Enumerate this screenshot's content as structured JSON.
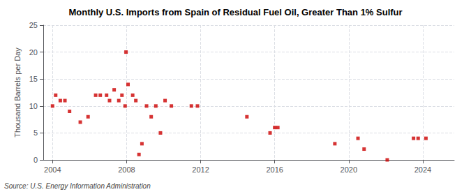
{
  "chart_data": {
    "type": "scatter",
    "title": "Monthly U.S. Imports from Spain of Residual Fuel Oil, Greater Than 1% Sulfur",
    "ylabel": "Thousand Barrels per Day",
    "annotations": [
      "Source: U.S. Energy Information Administration"
    ],
    "color": "#cc0000",
    "marker": "square",
    "grid": true,
    "xlim": [
      2003.5,
      2025.7
    ],
    "xticks": [
      2004,
      2008,
      2012,
      2016,
      2020,
      2024
    ],
    "ylim": [
      0,
      25
    ],
    "yticks": [
      0,
      5,
      10,
      15,
      20,
      25
    ],
    "x": [
      2004.0,
      2004.17,
      2004.42,
      2004.67,
      2004.92,
      2005.5,
      2005.92,
      2006.33,
      2006.58,
      2006.92,
      2007.08,
      2007.33,
      2007.58,
      2007.75,
      2007.92,
      2007.97,
      2008.08,
      2008.33,
      2008.5,
      2008.67,
      2008.83,
      2009.08,
      2009.33,
      2009.58,
      2009.83,
      2010.08,
      2010.42,
      2011.5,
      2011.83,
      2014.5,
      2015.75,
      2016.0,
      2016.17,
      2019.25,
      2020.5,
      2020.83,
      2022.08,
      2023.5,
      2023.75,
      2024.17
    ],
    "values": [
      10,
      12,
      11,
      11,
      9,
      7,
      8,
      12,
      12,
      12,
      11,
      13,
      11,
      12,
      10,
      20,
      14,
      12,
      11,
      1,
      3,
      10,
      8,
      10,
      5,
      11,
      10,
      10,
      10,
      8,
      5,
      6,
      6,
      3,
      4,
      2,
      0,
      4,
      4,
      4
    ]
  }
}
